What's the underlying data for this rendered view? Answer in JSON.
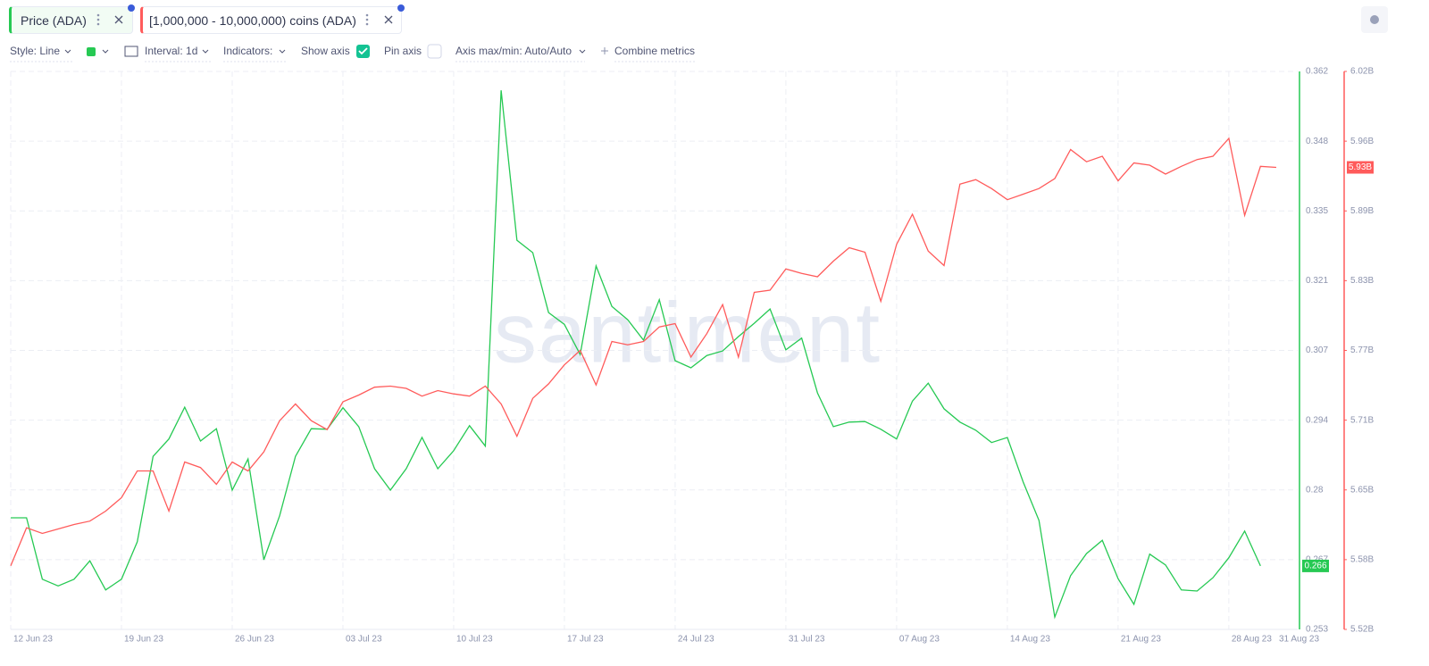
{
  "toolbar": {
    "style": "Style: Line",
    "interval": "Interval: 1d",
    "indicators": "Indicators:",
    "show_axis": "Show axis",
    "pin_axis": "Pin axis",
    "axis_minmax": "Axis max/min: Auto/Auto",
    "combine": "Combine metrics"
  },
  "chart_data": {
    "type": "line",
    "watermark": "santiment",
    "grid": true,
    "x": [
      "2023-06-12",
      "2023-06-13",
      "2023-06-14",
      "2023-06-15",
      "2023-06-16",
      "2023-06-17",
      "2023-06-18",
      "2023-06-19",
      "2023-06-20",
      "2023-06-21",
      "2023-06-22",
      "2023-06-23",
      "2023-06-24",
      "2023-06-25",
      "2023-06-26",
      "2023-06-27",
      "2023-06-28",
      "2023-06-29",
      "2023-06-30",
      "2023-07-01",
      "2023-07-02",
      "2023-07-03",
      "2023-07-04",
      "2023-07-05",
      "2023-07-06",
      "2023-07-07",
      "2023-07-08",
      "2023-07-09",
      "2023-07-10",
      "2023-07-11",
      "2023-07-12",
      "2023-07-13",
      "2023-07-14",
      "2023-07-15",
      "2023-07-16",
      "2023-07-17",
      "2023-07-18",
      "2023-07-19",
      "2023-07-20",
      "2023-07-21",
      "2023-07-22",
      "2023-07-23",
      "2023-07-24",
      "2023-07-25",
      "2023-07-26",
      "2023-07-27",
      "2023-07-28",
      "2023-07-29",
      "2023-07-30",
      "2023-07-31",
      "2023-08-01",
      "2023-08-02",
      "2023-08-03",
      "2023-08-04",
      "2023-08-05",
      "2023-08-06",
      "2023-08-07",
      "2023-08-08",
      "2023-08-09",
      "2023-08-10",
      "2023-08-11",
      "2023-08-12",
      "2023-08-13",
      "2023-08-14",
      "2023-08-15",
      "2023-08-16",
      "2023-08-17",
      "2023-08-18",
      "2023-08-19",
      "2023-08-20",
      "2023-08-21",
      "2023-08-22",
      "2023-08-23",
      "2023-08-24",
      "2023-08-25",
      "2023-08-26",
      "2023-08-27",
      "2023-08-28",
      "2023-08-29",
      "2023-08-30",
      "2023-08-31"
    ],
    "xlim": [
      "2023-06-12",
      "2023-08-31"
    ],
    "xticks": [
      {
        "value": "2023-06-12",
        "label": "12 Jun 23"
      },
      {
        "value": "2023-06-19",
        "label": "19 Jun 23"
      },
      {
        "value": "2023-06-26",
        "label": "26 Jun 23"
      },
      {
        "value": "2023-07-03",
        "label": "03 Jul 23"
      },
      {
        "value": "2023-07-10",
        "label": "10 Jul 23"
      },
      {
        "value": "2023-07-17",
        "label": "17 Jul 23"
      },
      {
        "value": "2023-07-24",
        "label": "24 Jul 23"
      },
      {
        "value": "2023-07-31",
        "label": "31 Jul 23"
      },
      {
        "value": "2023-08-07",
        "label": "07 Aug 23"
      },
      {
        "value": "2023-08-14",
        "label": "14 Aug 23"
      },
      {
        "value": "2023-08-21",
        "label": "21 Aug 23"
      },
      {
        "value": "2023-08-28",
        "label": "28 Aug 23"
      },
      {
        "value": "2023-08-31",
        "label": "31 Aug 23"
      }
    ],
    "ylim": [
      0.253,
      0.362
    ],
    "yticks": [
      0.253,
      {
        "value": 0.266625,
        "label": "0.267"
      },
      {
        "value": 0.28025,
        "label": "0.28"
      },
      {
        "value": 0.293875,
        "label": "0.294"
      },
      {
        "value": 0.3075,
        "label": "0.307"
      },
      {
        "value": 0.321125,
        "label": "0.321"
      },
      {
        "value": 0.33475,
        "label": "0.335"
      },
      {
        "value": 0.348375,
        "label": "0.348"
      },
      0.362
    ],
    "y2lim": [
      5.52,
      6.02
    ],
    "y2ticks": [
      {
        "value": 5.52,
        "label": "5.52B"
      },
      {
        "value": 5.5825,
        "label": "5.58B"
      },
      {
        "value": 5.645,
        "label": "5.65B"
      },
      {
        "value": 5.7075,
        "label": "5.71B"
      },
      {
        "value": 5.77,
        "label": "5.77B"
      },
      {
        "value": 5.8325,
        "label": "5.83B"
      },
      {
        "value": 5.895,
        "label": "5.89B"
      },
      {
        "value": 5.9575,
        "label": "5.96B"
      },
      {
        "value": 6.02,
        "label": "6.02B"
      }
    ],
    "series": [
      {
        "name": "Price (ADA)",
        "color": "#26c953",
        "last_label": "0.266",
        "values": [
          0.2748,
          0.2748,
          0.2628,
          0.2615,
          0.2628,
          0.2664,
          0.2607,
          0.2628,
          0.2701,
          0.2868,
          0.2902,
          0.2964,
          0.2898,
          0.2922,
          0.2802,
          0.2863,
          0.2666,
          0.2752,
          0.2868,
          0.2922,
          0.2921,
          0.2963,
          0.2926,
          0.2844,
          0.2802,
          0.2844,
          0.2905,
          0.2844,
          0.2879,
          0.2928,
          0.2888,
          0.3583,
          0.329,
          0.3266,
          0.3149,
          0.3126,
          0.3067,
          0.324,
          0.3161,
          0.3135,
          0.3095,
          0.3174,
          0.3055,
          0.3041,
          0.3065,
          0.3074,
          0.3102,
          0.3128,
          0.3156,
          0.3076,
          0.3099,
          0.2992,
          0.2926,
          0.2935,
          0.2936,
          0.2921,
          0.2902,
          0.2976,
          0.3011,
          0.2961,
          0.2935,
          0.2919,
          0.2895,
          0.2905,
          0.2818,
          0.2743,
          0.2554,
          0.2635,
          0.2678,
          0.2704,
          0.2629,
          0.2579,
          0.2677,
          0.2656,
          0.2607,
          0.2605,
          0.2631,
          0.267,
          0.2722,
          0.2654,
          null
        ]
      },
      {
        "name": "[1,000,000 - 10,000,000) coins (ADA)",
        "color": "#ff5b5b",
        "axis": "y2",
        "last_label": "5.93B",
        "values": [
          5.577,
          5.611,
          5.606,
          5.61,
          5.614,
          5.617,
          5.626,
          5.638,
          5.662,
          5.662,
          5.626,
          5.67,
          5.665,
          5.65,
          5.67,
          5.662,
          5.679,
          5.707,
          5.722,
          5.707,
          5.699,
          5.724,
          5.73,
          5.737,
          5.738,
          5.736,
          5.729,
          5.734,
          5.731,
          5.729,
          5.738,
          5.722,
          5.693,
          5.727,
          5.74,
          5.757,
          5.77,
          5.739,
          5.778,
          5.775,
          5.778,
          5.791,
          5.794,
          5.764,
          5.785,
          5.811,
          5.764,
          5.822,
          5.824,
          5.843,
          5.839,
          5.836,
          5.85,
          5.862,
          5.858,
          5.814,
          5.865,
          5.892,
          5.859,
          5.846,
          5.919,
          5.923,
          5.915,
          5.905,
          5.91,
          5.915,
          5.924,
          5.95,
          5.939,
          5.944,
          5.922,
          5.938,
          5.936,
          5.928,
          5.935,
          5.941,
          5.944,
          5.96,
          5.891,
          5.935,
          5.934
        ]
      }
    ]
  }
}
